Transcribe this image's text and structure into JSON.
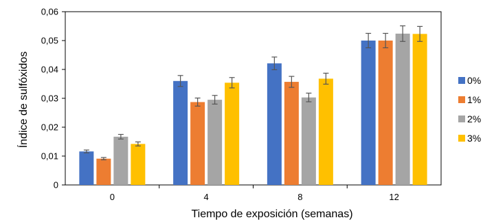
{
  "chart_data": {
    "type": "bar",
    "xlabel": "Tiempo de exposición (semanas)",
    "ylabel": "Índice de sulfóxidos",
    "categories": [
      "0",
      "4",
      "8",
      "12"
    ],
    "ylim": [
      0,
      0.06
    ],
    "yticks": [
      "0",
      "0,01",
      "0,02",
      "0,03",
      "0,04",
      "0,05",
      "0,06"
    ],
    "legend_position": "right",
    "grid": false,
    "series": [
      {
        "name": "0%",
        "color": "#4472C4",
        "values": [
          0.0116,
          0.036,
          0.0421,
          0.05
        ],
        "errors": [
          0.0005,
          0.0019,
          0.0022,
          0.0025
        ]
      },
      {
        "name": "1%",
        "color": "#ED7D31",
        "values": [
          0.0091,
          0.0287,
          0.0357,
          0.05
        ],
        "errors": [
          0.0004,
          0.0014,
          0.0019,
          0.0025
        ]
      },
      {
        "name": "2%",
        "color": "#A5A5A5",
        "values": [
          0.0167,
          0.0295,
          0.0303,
          0.0524
        ],
        "errors": [
          0.0008,
          0.0015,
          0.0015,
          0.0027
        ]
      },
      {
        "name": "3%",
        "color": "#FFC000",
        "values": [
          0.0142,
          0.0354,
          0.0368,
          0.0523
        ],
        "errors": [
          0.0007,
          0.0018,
          0.0019,
          0.0026
        ]
      }
    ]
  }
}
